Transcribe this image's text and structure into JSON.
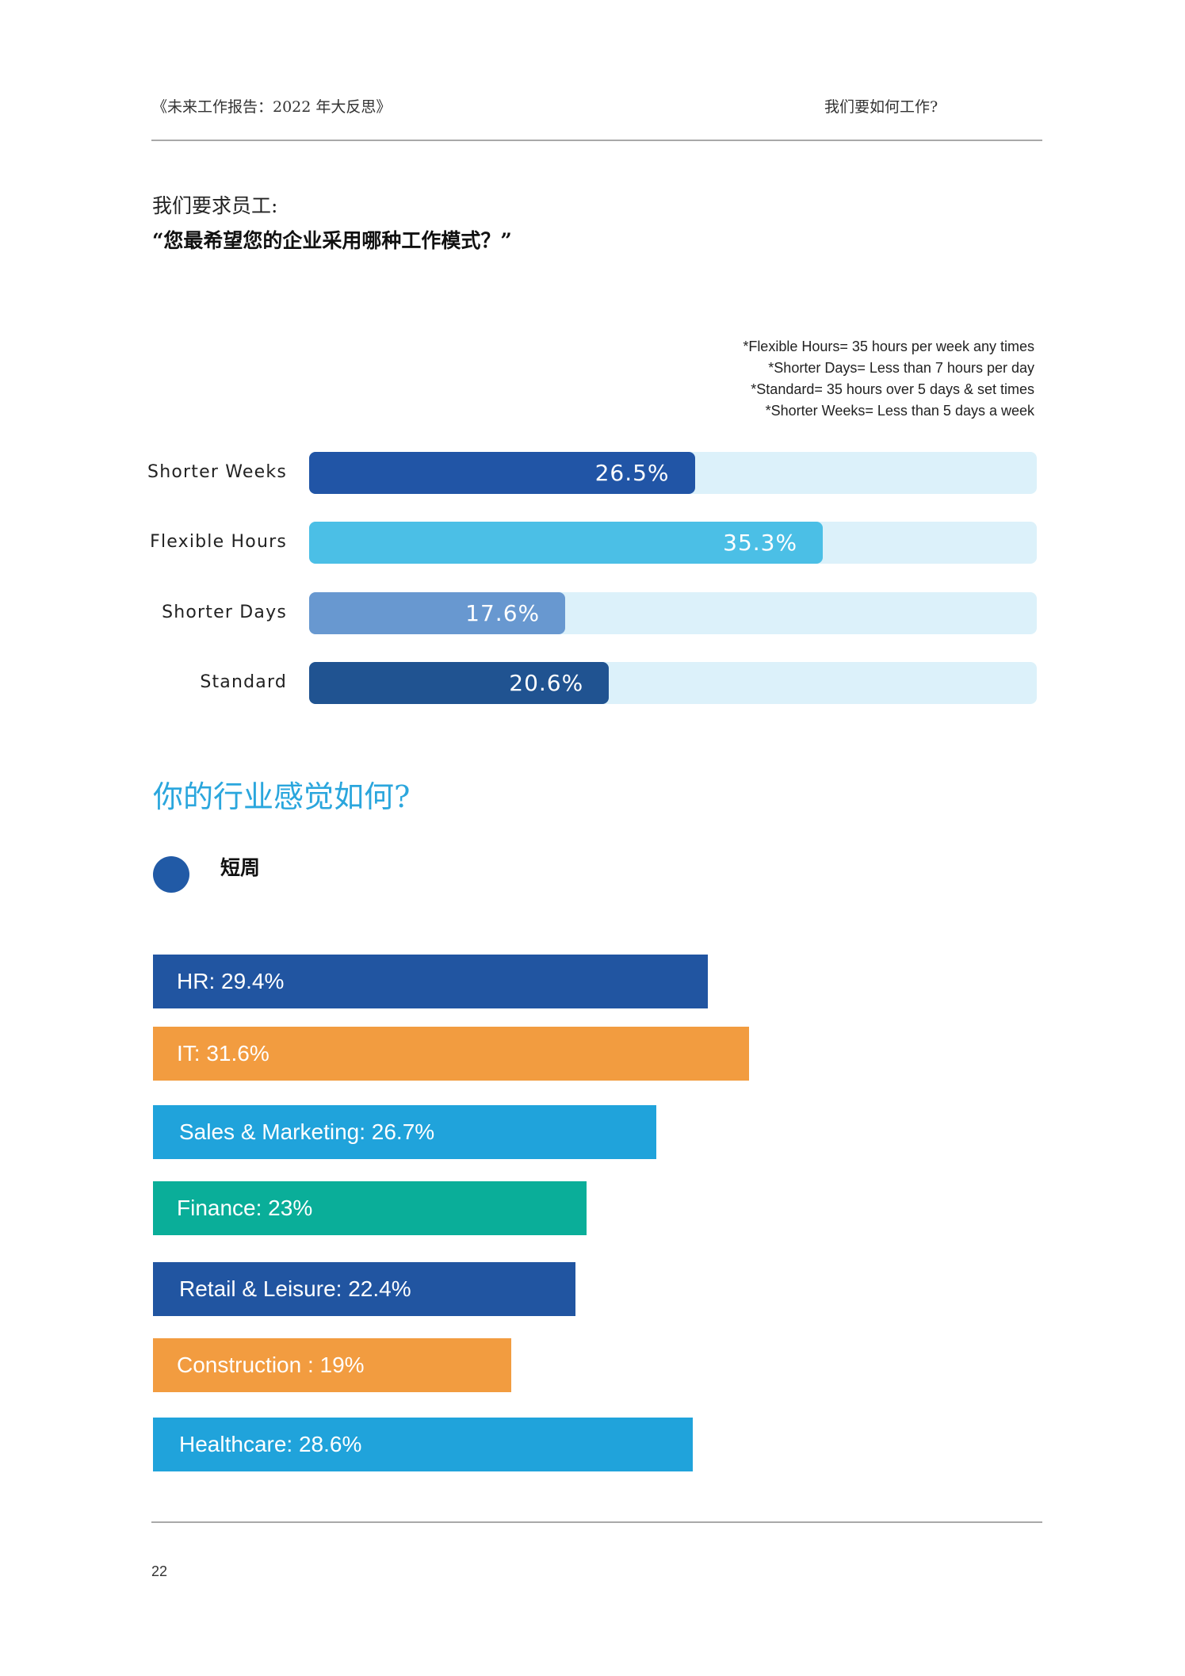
{
  "header": {
    "left": "《未来工作报告：2022 年大反思》",
    "right": "我们要如何工作?"
  },
  "question": {
    "intro": "我们要求员工:",
    "text": "“您最希望您的企业采用哪种工作模式？”"
  },
  "notes": [
    "*Flexible Hours= 35 hours per week any times",
    "*Shorter Days= Less than 7 hours per day",
    "*Standard= 35 hours over 5 days & set times",
    "*Shorter Weeks= Less than 5 days a week"
  ],
  "section": {
    "title": "你的行业感觉如何?",
    "legend_label": "短周"
  },
  "page_number": "22",
  "chart_data": [
    {
      "type": "bar",
      "orientation": "horizontal",
      "categories": [
        "Shorter Weeks",
        "Flexible Hours",
        "Shorter Days",
        "Standard"
      ],
      "values": [
        26.5,
        35.3,
        17.6,
        20.6
      ],
      "value_labels": [
        "26.5%",
        "35.3%",
        "17.6%",
        "20.6%"
      ],
      "colors": [
        "#2155a6",
        "#4bbfe6",
        "#6898d0",
        "#205391"
      ],
      "track_color": "#dcf1fa",
      "xlim": [
        0,
        50
      ]
    },
    {
      "type": "bar",
      "orientation": "horizontal",
      "categories": [
        "HR",
        "IT",
        "Sales & Marketing",
        "Finance",
        "Retail & Leisure",
        "Construction",
        "Healthcare"
      ],
      "values": [
        29.4,
        31.6,
        26.7,
        23,
        22.4,
        19,
        28.6
      ],
      "value_labels": [
        "HR: 29.4%",
        "IT: 31.6%",
        "Sales & Marketing: 26.7%",
        "Finance: 23%",
        "Retail & Leisure: 22.4%",
        "Construction : 19%",
        "Healthcare: 28.6%"
      ],
      "colors": [
        "#2155a1",
        "#f29c40",
        "#20a3db",
        "#0aae99",
        "#2155a1",
        "#f29c40",
        "#20a3db"
      ],
      "series": [
        {
          "name": "短周",
          "color": "#215aa6"
        }
      ]
    }
  ]
}
